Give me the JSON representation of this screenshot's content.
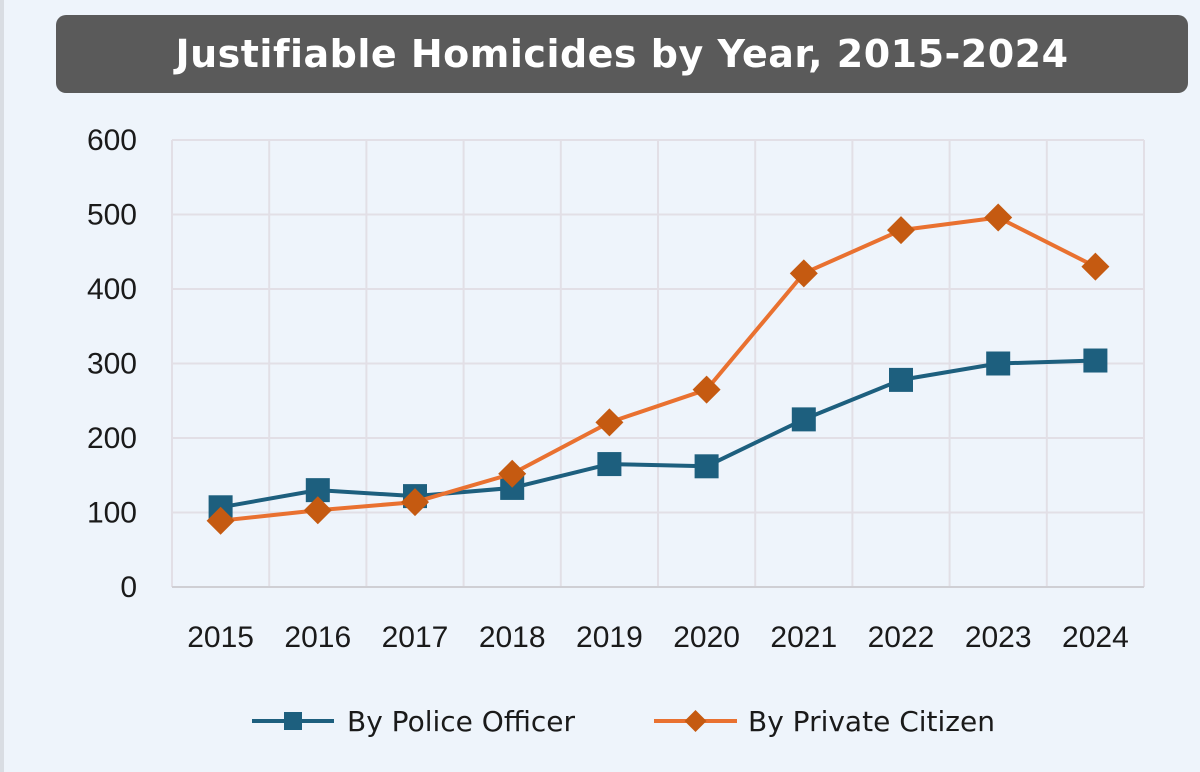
{
  "chart_data": {
    "type": "line",
    "title": "Justifiable Homicides by Year, 2015-2024",
    "categories": [
      "2015",
      "2016",
      "2017",
      "2018",
      "2019",
      "2020",
      "2021",
      "2022",
      "2023",
      "2024"
    ],
    "series": [
      {
        "name": "By Police Officer",
        "color": "#1d5f7e",
        "marker": "square",
        "values": [
          107,
          130,
          122,
          133,
          165,
          162,
          225,
          278,
          300,
          304
        ]
      },
      {
        "name": "By Private Citizen",
        "color": "#e97130",
        "marker": "diamond",
        "markerColor": "#c55a11",
        "values": [
          89,
          103,
          114,
          152,
          221,
          265,
          421,
          479,
          496,
          430
        ]
      }
    ],
    "ylim": [
      0,
      600
    ],
    "yticks": [
      0,
      100,
      200,
      300,
      400,
      500,
      600
    ],
    "grid": true,
    "legend_position": "bottom"
  }
}
